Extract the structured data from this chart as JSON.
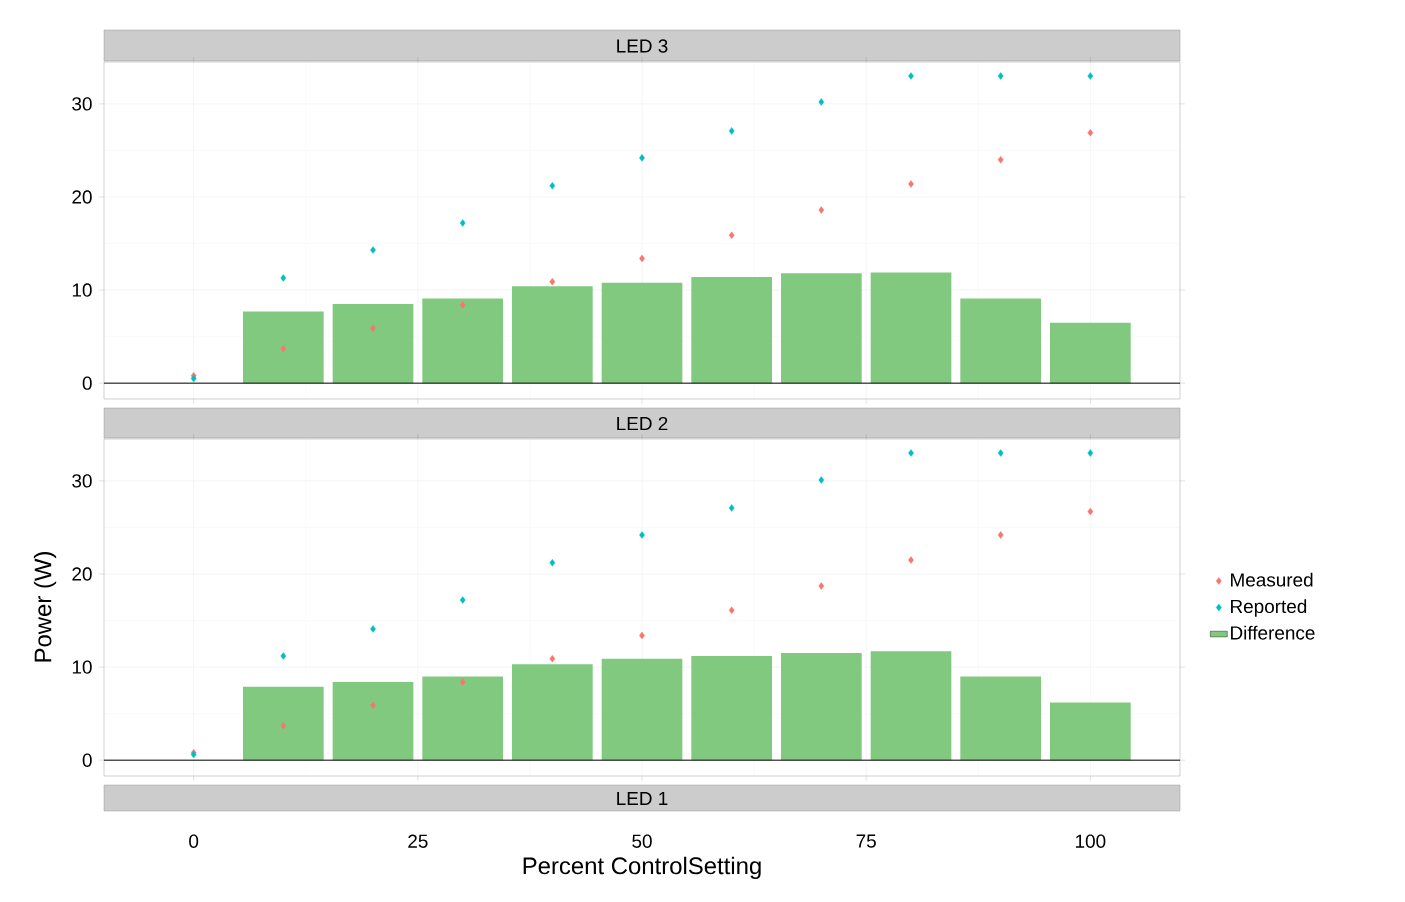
{
  "chart_data": [
    {
      "type": "scatter",
      "title": "LED 3",
      "x": [
        0,
        10,
        20,
        30,
        40,
        50,
        60,
        70,
        80,
        90,
        100
      ],
      "xlim": [
        -10,
        110
      ],
      "xticks": [
        0,
        25,
        50,
        75,
        100
      ],
      "ylim": [
        -1.7,
        34.5
      ],
      "yticks": [
        0,
        10,
        20,
        30
      ],
      "grid": true,
      "marker": "diamond",
      "tick_labels": "y",
      "series": [
        {
          "color": "#f8766d",
          "values": [
            0.8,
            3.7,
            5.9,
            8.4,
            10.9,
            13.4,
            15.9,
            18.6,
            21.4,
            24.0,
            26.9
          ]
        },
        {
          "color": "#00bfc4",
          "values": [
            0.5,
            11.3,
            14.3,
            17.2,
            21.2,
            24.2,
            27.1,
            30.2,
            33.0,
            33.0,
            33.0
          ]
        },
        {
          "type": "bar",
          "color": "#80c97f",
          "values": [
            0,
            7.7,
            8.5,
            9.1,
            10.4,
            10.8,
            11.4,
            11.8,
            11.9,
            9.1,
            6.5
          ]
        }
      ],
      "ref_lines": [
        {
          "axis": "y",
          "value": 0,
          "color": "#000000"
        }
      ]
    },
    {
      "type": "scatter",
      "title": "LED 2",
      "ylabel": "Power (W)",
      "xlabel": "Percent ControlSetting",
      "x": [
        0,
        10,
        20,
        30,
        40,
        50,
        60,
        70,
        80,
        90,
        100
      ],
      "xlim": [
        -10,
        110
      ],
      "xticks": [
        0,
        25,
        50,
        75,
        100
      ],
      "ylim": [
        -1.7,
        34.5
      ],
      "yticks": [
        0,
        10,
        20,
        30
      ],
      "grid": true,
      "marker": "diamond",
      "legend": "right",
      "series": [
        {
          "name": "Measured",
          "color": "#f8766d",
          "values": [
            0.8,
            3.7,
            5.9,
            8.4,
            10.9,
            13.4,
            16.1,
            18.7,
            21.5,
            24.2,
            26.7
          ]
        },
        {
          "name": "Reported",
          "color": "#00bfc4",
          "values": [
            0.6,
            11.2,
            14.1,
            17.2,
            21.2,
            24.2,
            27.1,
            30.1,
            33.0,
            33.0,
            33.0
          ]
        },
        {
          "name": "Difference",
          "type": "bar",
          "color": "#80c97f",
          "values": [
            0,
            7.9,
            8.4,
            9.0,
            10.3,
            10.9,
            11.2,
            11.5,
            11.7,
            9.0,
            6.2
          ]
        }
      ],
      "ref_lines": [
        {
          "axis": "y",
          "value": 0,
          "color": "#000000"
        }
      ]
    },
    {
      "type": "other",
      "title": "LED 1"
    }
  ]
}
